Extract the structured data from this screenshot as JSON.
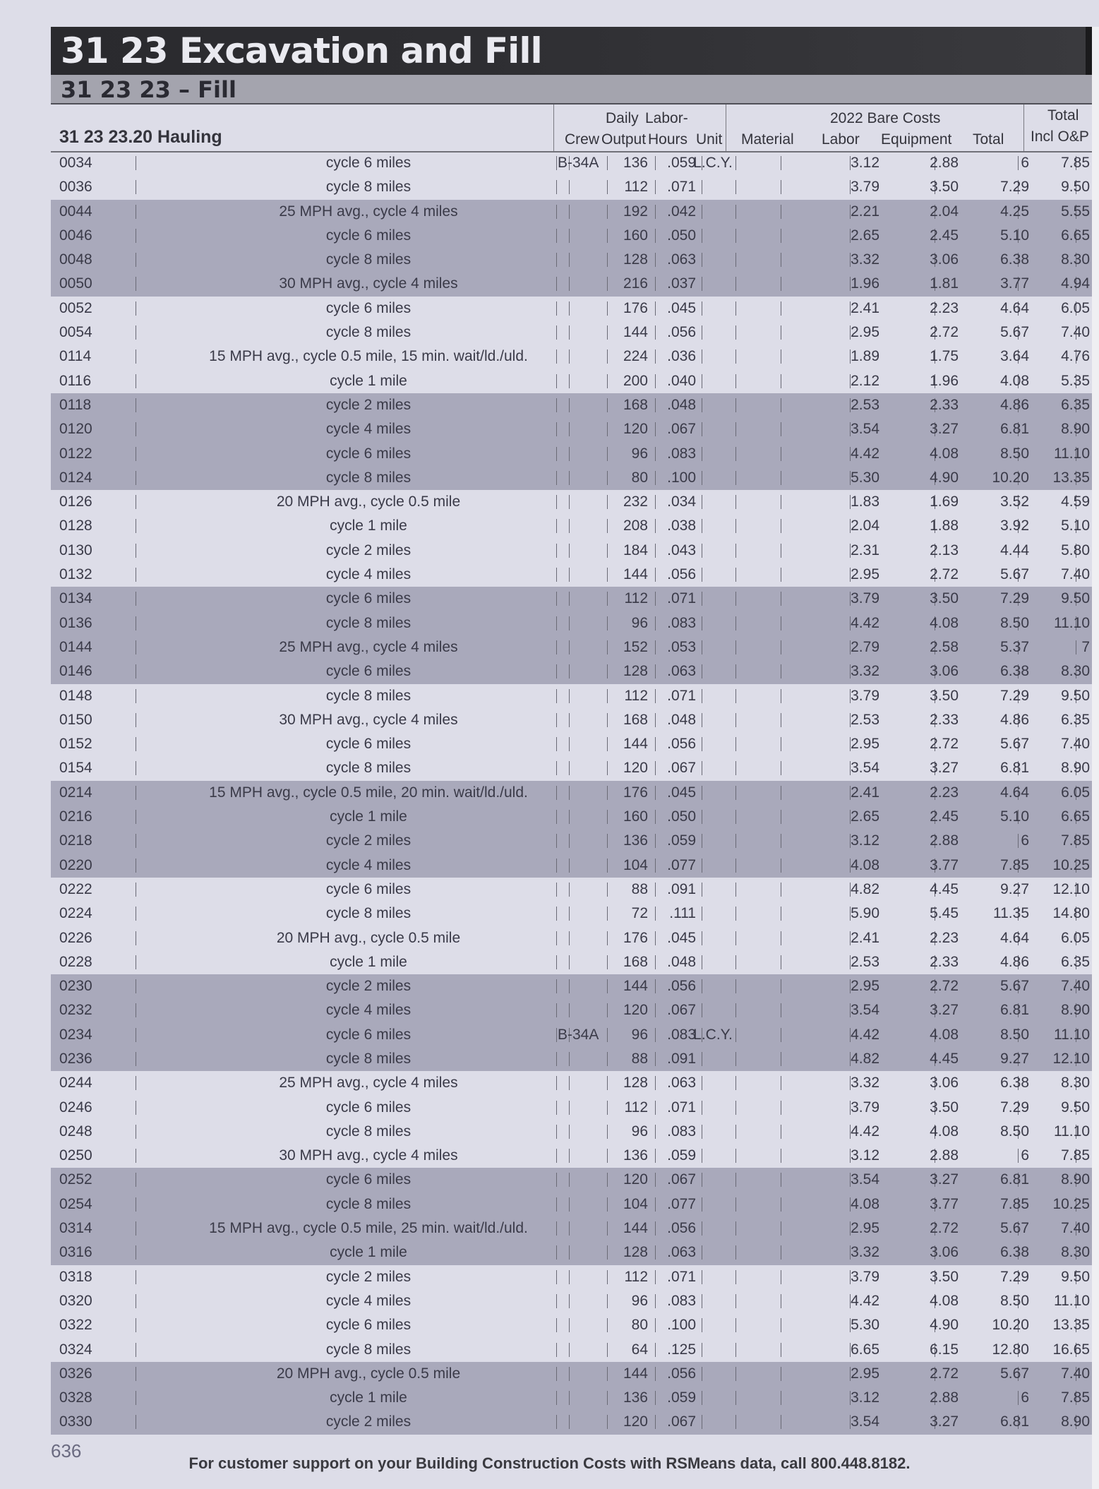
{
  "header": {
    "title": "31 23 Excavation and Fill",
    "subtitle": "31 23 23 – Fill"
  },
  "table": {
    "section": "31 23 23.20 Hauling",
    "columns": {
      "crew": "Crew",
      "daily": "Daily",
      "output": "Output",
      "labor_top": "Labor-",
      "hours": "Hours",
      "unit": "Unit",
      "material": "Material",
      "bare_costs": "2022 Bare Costs",
      "labor": "Labor",
      "equipment": "Equipment",
      "total": "Total",
      "total_top": "Total",
      "incl_op": "Incl O&P"
    },
    "rows": [
      {
        "code": "0034",
        "desc": "cycle 6 miles",
        "crew": "B-34A",
        "output": "136",
        "hours": ".059",
        "unit": "L.C.Y.",
        "labor": "3.12",
        "equip": "2.88",
        "total": "6",
        "op": "7.85",
        "shade": false
      },
      {
        "code": "0036",
        "desc": "cycle 8 miles",
        "crew": "",
        "output": "112",
        "hours": ".071",
        "unit": "",
        "labor": "3.79",
        "equip": "3.50",
        "total": "7.29",
        "op": "9.50",
        "shade": false
      },
      {
        "code": "0044",
        "desc": "25 MPH avg., cycle 4 miles",
        "crew": "",
        "output": "192",
        "hours": ".042",
        "unit": "",
        "labor": "2.21",
        "equip": "2.04",
        "total": "4.25",
        "op": "5.55",
        "shade": true
      },
      {
        "code": "0046",
        "desc": "cycle 6 miles",
        "crew": "",
        "output": "160",
        "hours": ".050",
        "unit": "",
        "labor": "2.65",
        "equip": "2.45",
        "total": "5.10",
        "op": "6.65",
        "shade": true
      },
      {
        "code": "0048",
        "desc": "cycle 8 miles",
        "crew": "",
        "output": "128",
        "hours": ".063",
        "unit": "",
        "labor": "3.32",
        "equip": "3.06",
        "total": "6.38",
        "op": "8.30",
        "shade": true
      },
      {
        "code": "0050",
        "desc": "30 MPH avg., cycle 4 miles",
        "crew": "",
        "output": "216",
        "hours": ".037",
        "unit": "",
        "labor": "1.96",
        "equip": "1.81",
        "total": "3.77",
        "op": "4.94",
        "shade": true
      },
      {
        "code": "0052",
        "desc": "cycle 6 miles",
        "crew": "",
        "output": "176",
        "hours": ".045",
        "unit": "",
        "labor": "2.41",
        "equip": "2.23",
        "total": "4.64",
        "op": "6.05",
        "shade": false
      },
      {
        "code": "0054",
        "desc": "cycle 8 miles",
        "crew": "",
        "output": "144",
        "hours": ".056",
        "unit": "",
        "labor": "2.95",
        "equip": "2.72",
        "total": "5.67",
        "op": "7.40",
        "shade": false
      },
      {
        "code": "0114",
        "desc": "15 MPH avg., cycle 0.5 mile, 15 min. wait/ld./uld.",
        "crew": "",
        "output": "224",
        "hours": ".036",
        "unit": "",
        "labor": "1.89",
        "equip": "1.75",
        "total": "3.64",
        "op": "4.76",
        "shade": false
      },
      {
        "code": "0116",
        "desc": "cycle 1 mile",
        "crew": "",
        "output": "200",
        "hours": ".040",
        "unit": "",
        "labor": "2.12",
        "equip": "1.96",
        "total": "4.08",
        "op": "5.35",
        "shade": false
      },
      {
        "code": "0118",
        "desc": "cycle 2 miles",
        "crew": "",
        "output": "168",
        "hours": ".048",
        "unit": "",
        "labor": "2.53",
        "equip": "2.33",
        "total": "4.86",
        "op": "6.35",
        "shade": true
      },
      {
        "code": "0120",
        "desc": "cycle 4 miles",
        "crew": "",
        "output": "120",
        "hours": ".067",
        "unit": "",
        "labor": "3.54",
        "equip": "3.27",
        "total": "6.81",
        "op": "8.90",
        "shade": true
      },
      {
        "code": "0122",
        "desc": "cycle 6 miles",
        "crew": "",
        "output": "96",
        "hours": ".083",
        "unit": "",
        "labor": "4.42",
        "equip": "4.08",
        "total": "8.50",
        "op": "11.10",
        "shade": true
      },
      {
        "code": "0124",
        "desc": "cycle 8 miles",
        "crew": "",
        "output": "80",
        "hours": ".100",
        "unit": "",
        "labor": "5.30",
        "equip": "4.90",
        "total": "10.20",
        "op": "13.35",
        "shade": true
      },
      {
        "code": "0126",
        "desc": "20 MPH avg., cycle 0.5 mile",
        "crew": "",
        "output": "232",
        "hours": ".034",
        "unit": "",
        "labor": "1.83",
        "equip": "1.69",
        "total": "3.52",
        "op": "4.59",
        "shade": false
      },
      {
        "code": "0128",
        "desc": "cycle 1 mile",
        "crew": "",
        "output": "208",
        "hours": ".038",
        "unit": "",
        "labor": "2.04",
        "equip": "1.88",
        "total": "3.92",
        "op": "5.10",
        "shade": false
      },
      {
        "code": "0130",
        "desc": "cycle 2 miles",
        "crew": "",
        "output": "184",
        "hours": ".043",
        "unit": "",
        "labor": "2.31",
        "equip": "2.13",
        "total": "4.44",
        "op": "5.80",
        "shade": false
      },
      {
        "code": "0132",
        "desc": "cycle 4 miles",
        "crew": "",
        "output": "144",
        "hours": ".056",
        "unit": "",
        "labor": "2.95",
        "equip": "2.72",
        "total": "5.67",
        "op": "7.40",
        "shade": false
      },
      {
        "code": "0134",
        "desc": "cycle 6 miles",
        "crew": "",
        "output": "112",
        "hours": ".071",
        "unit": "",
        "labor": "3.79",
        "equip": "3.50",
        "total": "7.29",
        "op": "9.50",
        "shade": true
      },
      {
        "code": "0136",
        "desc": "cycle 8 miles",
        "crew": "",
        "output": "96",
        "hours": ".083",
        "unit": "",
        "labor": "4.42",
        "equip": "4.08",
        "total": "8.50",
        "op": "11.10",
        "shade": true
      },
      {
        "code": "0144",
        "desc": "25 MPH avg., cycle 4 miles",
        "crew": "",
        "output": "152",
        "hours": ".053",
        "unit": "",
        "labor": "2.79",
        "equip": "2.58",
        "total": "5.37",
        "op": "7",
        "shade": true
      },
      {
        "code": "0146",
        "desc": "cycle 6 miles",
        "crew": "",
        "output": "128",
        "hours": ".063",
        "unit": "",
        "labor": "3.32",
        "equip": "3.06",
        "total": "6.38",
        "op": "8.30",
        "shade": true
      },
      {
        "code": "0148",
        "desc": "cycle 8 miles",
        "crew": "",
        "output": "112",
        "hours": ".071",
        "unit": "",
        "labor": "3.79",
        "equip": "3.50",
        "total": "7.29",
        "op": "9.50",
        "shade": false
      },
      {
        "code": "0150",
        "desc": "30 MPH avg., cycle 4 miles",
        "crew": "",
        "output": "168",
        "hours": ".048",
        "unit": "",
        "labor": "2.53",
        "equip": "2.33",
        "total": "4.86",
        "op": "6.35",
        "shade": false
      },
      {
        "code": "0152",
        "desc": "cycle 6 miles",
        "crew": "",
        "output": "144",
        "hours": ".056",
        "unit": "",
        "labor": "2.95",
        "equip": "2.72",
        "total": "5.67",
        "op": "7.40",
        "shade": false
      },
      {
        "code": "0154",
        "desc": "cycle 8 miles",
        "crew": "",
        "output": "120",
        "hours": ".067",
        "unit": "",
        "labor": "3.54",
        "equip": "3.27",
        "total": "6.81",
        "op": "8.90",
        "shade": false
      },
      {
        "code": "0214",
        "desc": "15 MPH avg., cycle 0.5 mile, 20 min. wait/ld./uld.",
        "crew": "",
        "output": "176",
        "hours": ".045",
        "unit": "",
        "labor": "2.41",
        "equip": "2.23",
        "total": "4.64",
        "op": "6.05",
        "shade": true
      },
      {
        "code": "0216",
        "desc": "cycle 1 mile",
        "crew": "",
        "output": "160",
        "hours": ".050",
        "unit": "",
        "labor": "2.65",
        "equip": "2.45",
        "total": "5.10",
        "op": "6.65",
        "shade": true
      },
      {
        "code": "0218",
        "desc": "cycle 2 miles",
        "crew": "",
        "output": "136",
        "hours": ".059",
        "unit": "",
        "labor": "3.12",
        "equip": "2.88",
        "total": "6",
        "op": "7.85",
        "shade": true
      },
      {
        "code": "0220",
        "desc": "cycle 4 miles",
        "crew": "",
        "output": "104",
        "hours": ".077",
        "unit": "",
        "labor": "4.08",
        "equip": "3.77",
        "total": "7.85",
        "op": "10.25",
        "shade": true
      },
      {
        "code": "0222",
        "desc": "cycle 6 miles",
        "crew": "",
        "output": "88",
        "hours": ".091",
        "unit": "",
        "labor": "4.82",
        "equip": "4.45",
        "total": "9.27",
        "op": "12.10",
        "shade": false
      },
      {
        "code": "0224",
        "desc": "cycle 8 miles",
        "crew": "",
        "output": "72",
        "hours": ".111",
        "unit": "",
        "labor": "5.90",
        "equip": "5.45",
        "total": "11.35",
        "op": "14.80",
        "shade": false
      },
      {
        "code": "0226",
        "desc": "20 MPH avg., cycle 0.5 mile",
        "crew": "",
        "output": "176",
        "hours": ".045",
        "unit": "",
        "labor": "2.41",
        "equip": "2.23",
        "total": "4.64",
        "op": "6.05",
        "shade": false
      },
      {
        "code": "0228",
        "desc": "cycle 1 mile",
        "crew": "",
        "output": "168",
        "hours": ".048",
        "unit": "",
        "labor": "2.53",
        "equip": "2.33",
        "total": "4.86",
        "op": "6.35",
        "shade": false
      },
      {
        "code": "0230",
        "desc": "cycle 2 miles",
        "crew": "",
        "output": "144",
        "hours": ".056",
        "unit": "",
        "labor": "2.95",
        "equip": "2.72",
        "total": "5.67",
        "op": "7.40",
        "shade": true
      },
      {
        "code": "0232",
        "desc": "cycle 4 miles",
        "crew": "",
        "output": "120",
        "hours": ".067",
        "unit": "",
        "labor": "3.54",
        "equip": "3.27",
        "total": "6.81",
        "op": "8.90",
        "shade": true
      },
      {
        "code": "0234",
        "desc": "cycle 6 miles",
        "crew": "B-34A",
        "output": "96",
        "hours": ".083",
        "unit": "L.C.Y.",
        "labor": "4.42",
        "equip": "4.08",
        "total": "8.50",
        "op": "11.10",
        "shade": true
      },
      {
        "code": "0236",
        "desc": "cycle 8 miles",
        "crew": "",
        "output": "88",
        "hours": ".091",
        "unit": "",
        "labor": "4.82",
        "equip": "4.45",
        "total": "9.27",
        "op": "12.10",
        "shade": true
      },
      {
        "code": "0244",
        "desc": "25 MPH avg., cycle 4 miles",
        "crew": "",
        "output": "128",
        "hours": ".063",
        "unit": "",
        "labor": "3.32",
        "equip": "3.06",
        "total": "6.38",
        "op": "8.30",
        "shade": false
      },
      {
        "code": "0246",
        "desc": "cycle 6 miles",
        "crew": "",
        "output": "112",
        "hours": ".071",
        "unit": "",
        "labor": "3.79",
        "equip": "3.50",
        "total": "7.29",
        "op": "9.50",
        "shade": false
      },
      {
        "code": "0248",
        "desc": "cycle 8 miles",
        "crew": "",
        "output": "96",
        "hours": ".083",
        "unit": "",
        "labor": "4.42",
        "equip": "4.08",
        "total": "8.50",
        "op": "11.10",
        "shade": false
      },
      {
        "code": "0250",
        "desc": "30 MPH avg., cycle 4 miles",
        "crew": "",
        "output": "136",
        "hours": ".059",
        "unit": "",
        "labor": "3.12",
        "equip": "2.88",
        "total": "6",
        "op": "7.85",
        "shade": false
      },
      {
        "code": "0252",
        "desc": "cycle 6 miles",
        "crew": "",
        "output": "120",
        "hours": ".067",
        "unit": "",
        "labor": "3.54",
        "equip": "3.27",
        "total": "6.81",
        "op": "8.90",
        "shade": true
      },
      {
        "code": "0254",
        "desc": "cycle 8 miles",
        "crew": "",
        "output": "104",
        "hours": ".077",
        "unit": "",
        "labor": "4.08",
        "equip": "3.77",
        "total": "7.85",
        "op": "10.25",
        "shade": true
      },
      {
        "code": "0314",
        "desc": "15 MPH avg., cycle 0.5 mile, 25 min. wait/ld./uld.",
        "crew": "",
        "output": "144",
        "hours": ".056",
        "unit": "",
        "labor": "2.95",
        "equip": "2.72",
        "total": "5.67",
        "op": "7.40",
        "shade": true
      },
      {
        "code": "0316",
        "desc": "cycle 1 mile",
        "crew": "",
        "output": "128",
        "hours": ".063",
        "unit": "",
        "labor": "3.32",
        "equip": "3.06",
        "total": "6.38",
        "op": "8.30",
        "shade": true
      },
      {
        "code": "0318",
        "desc": "cycle 2 miles",
        "crew": "",
        "output": "112",
        "hours": ".071",
        "unit": "",
        "labor": "3.79",
        "equip": "3.50",
        "total": "7.29",
        "op": "9.50",
        "shade": false
      },
      {
        "code": "0320",
        "desc": "cycle 4 miles",
        "crew": "",
        "output": "96",
        "hours": ".083",
        "unit": "",
        "labor": "4.42",
        "equip": "4.08",
        "total": "8.50",
        "op": "11.10",
        "shade": false
      },
      {
        "code": "0322",
        "desc": "cycle 6 miles",
        "crew": "",
        "output": "80",
        "hours": ".100",
        "unit": "",
        "labor": "5.30",
        "equip": "4.90",
        "total": "10.20",
        "op": "13.35",
        "shade": false
      },
      {
        "code": "0324",
        "desc": "cycle 8 miles",
        "crew": "",
        "output": "64",
        "hours": ".125",
        "unit": "",
        "labor": "6.65",
        "equip": "6.15",
        "total": "12.80",
        "op": "16.65",
        "shade": false
      },
      {
        "code": "0326",
        "desc": "20 MPH avg., cycle 0.5 mile",
        "crew": "",
        "output": "144",
        "hours": ".056",
        "unit": "",
        "labor": "2.95",
        "equip": "2.72",
        "total": "5.67",
        "op": "7.40",
        "shade": true
      },
      {
        "code": "0328",
        "desc": "cycle 1 mile",
        "crew": "",
        "output": "136",
        "hours": ".059",
        "unit": "",
        "labor": "3.12",
        "equip": "2.88",
        "total": "6",
        "op": "7.85",
        "shade": true
      },
      {
        "code": "0330",
        "desc": "cycle 2 miles",
        "crew": "",
        "output": "120",
        "hours": ".067",
        "unit": "",
        "labor": "3.54",
        "equip": "3.27",
        "total": "6.81",
        "op": "8.90",
        "shade": true
      }
    ]
  },
  "page_number": "636",
  "footer": "For customer support on your Building Construction Costs with RSMeans data, call 800.448.8182."
}
